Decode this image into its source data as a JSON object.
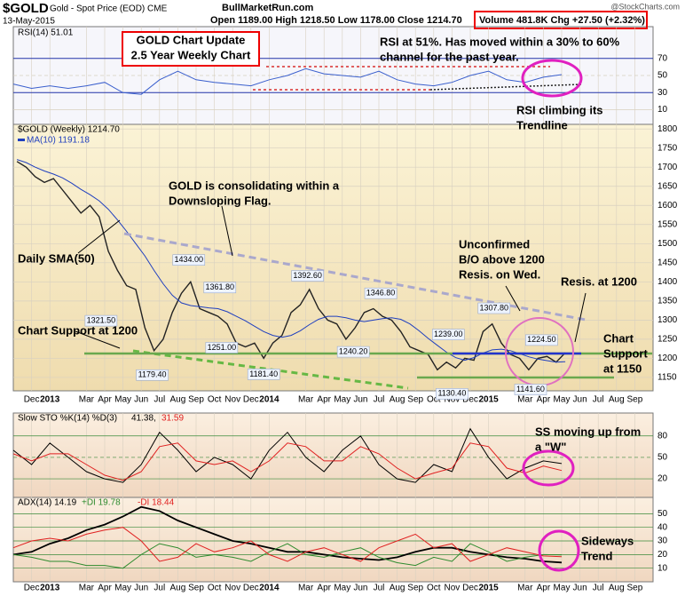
{
  "header": {
    "symbol": "$GOLD",
    "title": "Gold - Spot Price (EOD) CME",
    "date": "13-May-2015",
    "site": "BullMarketRun.com",
    "ohlc": "Open 1189.00 High 1218.50 Low 1178.00 Close 1214.70",
    "volume": "Volume 481.8K Chg +27.50 (+2.32%)",
    "credit": "@StockCharts.com"
  },
  "chart_data": [
    {
      "type": "line",
      "title": "RSI(14) 51.01",
      "x": [
        -1,
        0,
        1,
        2,
        3,
        4,
        5,
        6,
        7,
        8,
        9,
        10,
        11,
        12,
        13,
        14,
        15,
        16,
        17,
        18,
        19,
        20,
        21,
        22,
        23,
        24,
        25,
        26,
        27,
        28,
        29
      ],
      "series": [
        {
          "name": "RSI(14)",
          "color": "#3a5fcd",
          "values": [
            40,
            35,
            38,
            35,
            38,
            42,
            30,
            28,
            45,
            55,
            45,
            42,
            40,
            38,
            45,
            50,
            58,
            52,
            50,
            48,
            55,
            45,
            40,
            38,
            42,
            50,
            55,
            45,
            42,
            48,
            51.01
          ]
        }
      ],
      "ylim": [
        -7,
        107
      ],
      "yticks": [
        10,
        30,
        50,
        70
      ],
      "annotations": [
        [
          "GOLD Chart Update",
          "2.5 Year Weekly Chart"
        ],
        [
          "RSI at 51%. Has moved within a 30% to 60%",
          "channel for the past year."
        ],
        [
          "RSI climbing its",
          "Trendline"
        ]
      ]
    },
    {
      "type": "line",
      "xlim": [
        -1,
        34
      ],
      "ylim": [
        1115,
        1812
      ],
      "yticks": [
        1150,
        1200,
        1250,
        1300,
        1350,
        1400,
        1450,
        1500,
        1550,
        1600,
        1650,
        1700,
        1750,
        1800
      ],
      "xticks": [
        {
          "value": 0,
          "label": "Dec"
        },
        {
          "value": 1,
          "label": "2013"
        },
        {
          "value": 3,
          "label": "Mar"
        },
        {
          "value": 4,
          "label": "Apr"
        },
        {
          "value": 5,
          "label": "May"
        },
        {
          "value": 6,
          "label": "Jun"
        },
        {
          "value": 7,
          "label": "Jul"
        },
        {
          "value": 8,
          "label": "Aug"
        },
        {
          "value": 9,
          "label": "Sep"
        },
        {
          "value": 10,
          "label": "Oct"
        },
        {
          "value": 11,
          "label": "Nov"
        },
        {
          "value": 12,
          "label": "Dec"
        },
        {
          "value": 13,
          "label": "2014"
        },
        {
          "value": 15,
          "label": "Mar"
        },
        {
          "value": 16,
          "label": "Apr"
        },
        {
          "value": 17,
          "label": "May"
        },
        {
          "value": 18,
          "label": "Jun"
        },
        {
          "value": 19,
          "label": "Jul"
        },
        {
          "value": 20,
          "label": "Aug"
        },
        {
          "value": 21,
          "label": "Sep"
        },
        {
          "value": 22,
          "label": "Oct"
        },
        {
          "value": 23,
          "label": "Nov"
        },
        {
          "value": 24,
          "label": "Dec"
        },
        {
          "value": 25,
          "label": "2015"
        },
        {
          "value": 27,
          "label": "Mar"
        },
        {
          "value": 28,
          "label": "Apr"
        },
        {
          "value": 29,
          "label": "May"
        },
        {
          "value": 30,
          "label": "Jun"
        },
        {
          "value": 31,
          "label": "Jul"
        },
        {
          "value": 32,
          "label": "Aug"
        },
        {
          "value": 33,
          "label": "Sep"
        }
      ],
      "x": [
        -0.8,
        -0.3,
        0.2,
        0.7,
        1.2,
        1.7,
        2.2,
        2.7,
        3.2,
        3.7,
        4.2,
        4.7,
        5.2,
        5.7,
        6.2,
        6.7,
        7.2,
        7.7,
        8.2,
        8.7,
        9.2,
        9.7,
        10.2,
        10.7,
        11.2,
        11.7,
        12.2,
        12.7,
        13.2,
        13.7,
        14.2,
        14.7,
        15.2,
        15.7,
        16.2,
        16.7,
        17.2,
        17.7,
        18.2,
        18.7,
        19.2,
        19.7,
        20.2,
        20.7,
        21.2,
        21.7,
        22.2,
        22.7,
        23.2,
        23.7,
        24.2,
        24.7,
        25.2,
        25.7,
        26.2,
        26.7,
        27.2,
        27.7,
        28.2,
        28.7,
        29.2
      ],
      "series": [
        {
          "name": "$GOLD (Weekly) 1214.70",
          "color": "#222222",
          "values": [
            1715,
            1700,
            1675,
            1660,
            1670,
            1640,
            1610,
            1580,
            1600,
            1570,
            1480,
            1430,
            1390,
            1380,
            1280,
            1220,
            1250,
            1320,
            1370,
            1400,
            1330,
            1320,
            1310,
            1290,
            1240,
            1230,
            1240,
            1200,
            1240,
            1260,
            1320,
            1340,
            1380,
            1330,
            1300,
            1290,
            1250,
            1280,
            1320,
            1330,
            1310,
            1300,
            1270,
            1230,
            1220,
            1210,
            1170,
            1190,
            1175,
            1200,
            1195,
            1270,
            1290,
            1240,
            1210,
            1200,
            1170,
            1200,
            1205,
            1190,
            1214.7
          ]
        },
        {
          "name": "MA(10) 1191.18",
          "color": "#1f3fbf",
          "values": [
            1720,
            1712,
            1700,
            1690,
            1682,
            1672,
            1658,
            1642,
            1628,
            1612,
            1590,
            1562,
            1532,
            1500,
            1468,
            1430,
            1395,
            1365,
            1345,
            1338,
            1335,
            1332,
            1330,
            1322,
            1310,
            1298,
            1284,
            1270,
            1260,
            1255,
            1260,
            1272,
            1288,
            1302,
            1310,
            1310,
            1306,
            1300,
            1296,
            1300,
            1304,
            1306,
            1302,
            1290,
            1272,
            1252,
            1234,
            1216,
            1202,
            1195,
            1202,
            1214,
            1222,
            1224,
            1220,
            1212,
            1204,
            1198,
            1194,
            1190,
            1191.18
          ]
        }
      ],
      "price_labels": [
        {
          "x": 8.6,
          "value": 1434,
          "label": "1434.00"
        },
        {
          "x": 10.3,
          "value": 1361.8,
          "label": "1361.80"
        },
        {
          "x": 15.1,
          "value": 1392.6,
          "label": "1392.60"
        },
        {
          "x": 19.1,
          "value": 1346.8,
          "label": "1346.80"
        },
        {
          "x": 22.8,
          "value": 1239,
          "label": "1239.00"
        },
        {
          "x": 25.3,
          "value": 1307.8,
          "label": "1307.80"
        },
        {
          "x": 27.9,
          "value": 1224.5,
          "label": "1224.50"
        },
        {
          "x": 3.8,
          "value": 1321.5,
          "label": "1321.50"
        },
        {
          "x": 10.4,
          "value": 1251,
          "label": "1251.00"
        },
        {
          "x": 17.6,
          "value": 1240.2,
          "label": "1240.20"
        },
        {
          "x": 6.6,
          "value": 1179.4,
          "label": "1179.40"
        },
        {
          "x": 12.7,
          "value": 1181.4,
          "label": "1181.40"
        },
        {
          "x": 23.0,
          "value": 1130.4,
          "label": "1130.40"
        },
        {
          "x": 27.3,
          "value": 1141.6,
          "label": "1141.60"
        }
      ],
      "annotations": [
        [
          "GOLD is consolidating within a",
          "Downsloping Flag."
        ],
        [
          "Daily SMA(50)"
        ],
        [
          "Chart Support at 1200"
        ],
        [
          "Unconfirmed",
          "B/O above 1200",
          "Resis. on Wed."
        ],
        [
          "Resis. at 1200"
        ],
        [
          "Chart",
          "Support",
          "at 1150"
        ]
      ]
    },
    {
      "type": "line",
      "title": "Slow STO %K(14) %D(3)",
      "x": [
        -1,
        0,
        1,
        2,
        3,
        4,
        5,
        6,
        7,
        8,
        9,
        10,
        11,
        12,
        13,
        14,
        15,
        16,
        17,
        18,
        19,
        20,
        21,
        22,
        23,
        24,
        25,
        26,
        27,
        28,
        29
      ],
      "series": [
        {
          "name": "41.38,",
          "color": "#000000",
          "values": [
            60,
            40,
            70,
            50,
            30,
            20,
            15,
            40,
            85,
            60,
            30,
            50,
            40,
            20,
            60,
            85,
            50,
            30,
            60,
            80,
            40,
            20,
            15,
            40,
            30,
            90,
            50,
            20,
            35,
            45,
            41.38
          ]
        },
        {
          "name": "31.59",
          "color": "#e02020",
          "values": [
            55,
            45,
            55,
            55,
            40,
            25,
            18,
            30,
            65,
            70,
            45,
            40,
            45,
            30,
            45,
            70,
            65,
            45,
            45,
            65,
            55,
            35,
            20,
            28,
            35,
            70,
            65,
            35,
            28,
            38,
            31.59
          ]
        }
      ],
      "ylim": [
        -6,
        112
      ],
      "yticks": [
        20,
        50,
        80
      ],
      "annotations": [
        [
          "SS moving up from",
          "a \"W\""
        ]
      ]
    },
    {
      "type": "line",
      "title": "ADX(14) 14.19",
      "xticks": [
        {
          "value": 0,
          "label": "Dec"
        },
        {
          "value": 1,
          "label": "2013"
        },
        {
          "value": 3,
          "label": "Mar"
        },
        {
          "value": 4,
          "label": "Apr"
        },
        {
          "value": 5,
          "label": "May"
        },
        {
          "value": 6,
          "label": "Jun"
        },
        {
          "value": 7,
          "label": "Jul"
        },
        {
          "value": 8,
          "label": "Aug"
        },
        {
          "value": 9,
          "label": "Sep"
        },
        {
          "value": 10,
          "label": "Oct"
        },
        {
          "value": 11,
          "label": "Nov"
        },
        {
          "value": 12,
          "label": "Dec"
        },
        {
          "value": 13,
          "label": "2014"
        },
        {
          "value": 15,
          "label": "Mar"
        },
        {
          "value": 16,
          "label": "Apr"
        },
        {
          "value": 17,
          "label": "May"
        },
        {
          "value": 18,
          "label": "Jun"
        },
        {
          "value": 19,
          "label": "Jul"
        },
        {
          "value": 20,
          "label": "Aug"
        },
        {
          "value": 21,
          "label": "Sep"
        },
        {
          "value": 22,
          "label": "Oct"
        },
        {
          "value": 23,
          "label": "Nov"
        },
        {
          "value": 24,
          "label": "Dec"
        },
        {
          "value": 25,
          "label": "2015"
        },
        {
          "value": 27,
          "label": "Mar"
        },
        {
          "value": 28,
          "label": "Apr"
        },
        {
          "value": 29,
          "label": "May"
        },
        {
          "value": 30,
          "label": "Jun"
        },
        {
          "value": 31,
          "label": "Jul"
        },
        {
          "value": 32,
          "label": "Aug"
        },
        {
          "value": 33,
          "label": "Sep"
        }
      ],
      "x": [
        -1,
        0,
        1,
        2,
        3,
        4,
        5,
        6,
        7,
        8,
        9,
        10,
        11,
        12,
        13,
        14,
        15,
        16,
        17,
        18,
        19,
        20,
        21,
        22,
        23,
        24,
        25,
        26,
        27,
        28,
        29
      ],
      "series": [
        {
          "name": "ADX(14) 14.19",
          "color": "#000000",
          "values": [
            20,
            22,
            28,
            32,
            38,
            42,
            48,
            55,
            52,
            45,
            40,
            35,
            30,
            28,
            25,
            22,
            22,
            20,
            18,
            17,
            16,
            18,
            22,
            25,
            25,
            22,
            20,
            18,
            17,
            15,
            14.19
          ]
        },
        {
          "name": "+DI 19.78",
          "color": "#2e8b2e",
          "values": [
            20,
            18,
            15,
            15,
            12,
            12,
            10,
            20,
            28,
            25,
            18,
            20,
            18,
            15,
            22,
            28,
            20,
            18,
            22,
            25,
            18,
            14,
            12,
            18,
            15,
            28,
            22,
            15,
            18,
            20,
            19.78
          ]
        },
        {
          "name": "-DI 18.44",
          "color": "#e02020",
          "values": [
            25,
            30,
            32,
            30,
            35,
            38,
            40,
            30,
            15,
            18,
            28,
            22,
            25,
            30,
            20,
            15,
            22,
            25,
            20,
            15,
            25,
            30,
            35,
            25,
            28,
            15,
            20,
            25,
            22,
            19,
            18.44
          ]
        }
      ],
      "ylim": [
        0,
        62
      ],
      "yticks": [
        10,
        20,
        30,
        40,
        50
      ],
      "annotations": [
        [
          "Sideways",
          "Trend"
        ]
      ]
    }
  ]
}
